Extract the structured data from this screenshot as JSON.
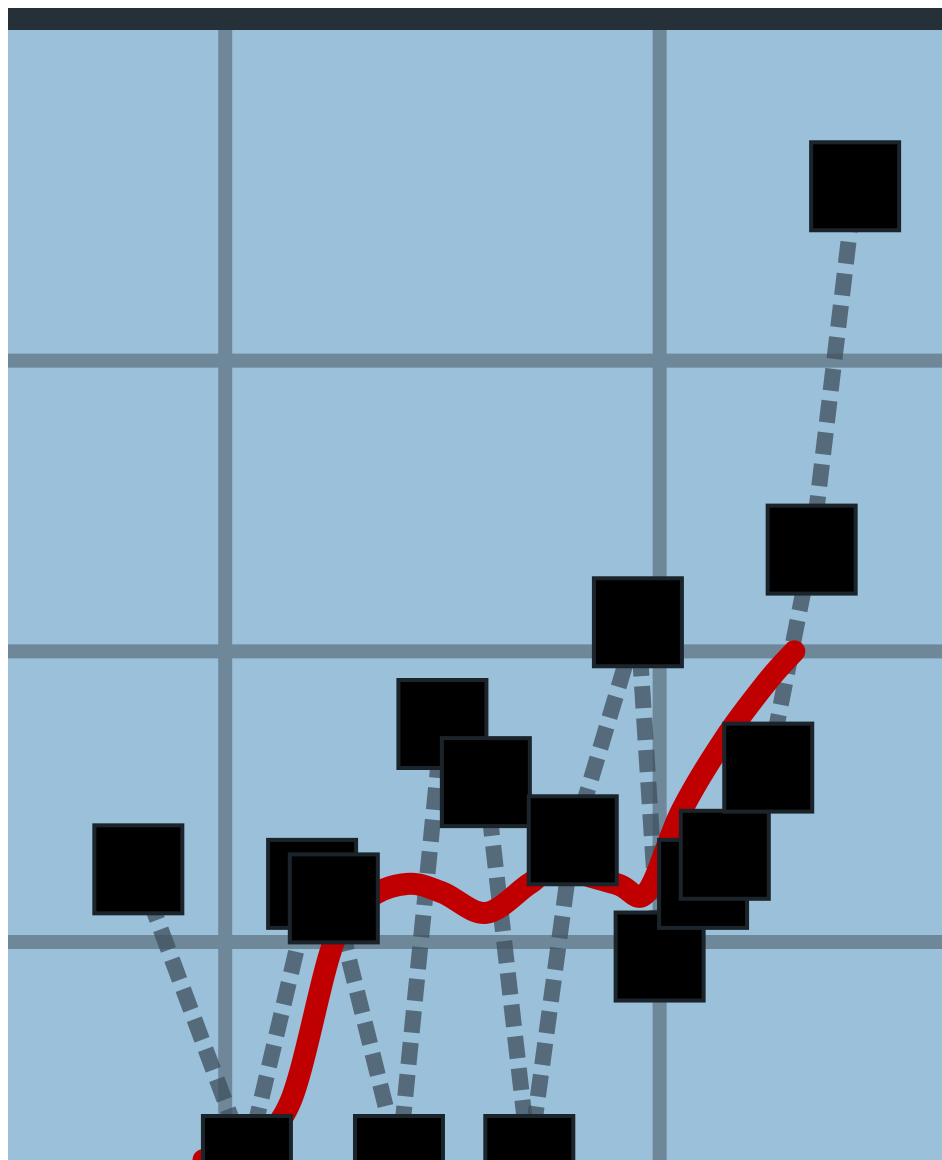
{
  "colors": {
    "plot_background": "#9bc0da",
    "gridline": "#6e8799",
    "frame_top": "#253038",
    "marker": "#000000",
    "connector": "#3d4f5c",
    "trend_line": "#c00000"
  },
  "chart_data": {
    "type": "line",
    "title": "",
    "xlabel": "",
    "ylabel": "",
    "grid": true,
    "legend": "none",
    "xlim": [
      0,
      21.5
    ],
    "ylim": [
      0,
      3.75
    ],
    "x_gridlines": [
      5,
      15
    ],
    "y_gridlines": [
      0.75,
      1.75,
      2.75
    ],
    "series": [
      {
        "marker": "square",
        "style": "markers-with-connectors",
        "x": [
          3,
          5.5,
          7,
          7.5,
          9,
          10,
          11,
          12,
          13,
          14.5,
          15,
          16,
          16.5,
          17.5,
          18.5,
          19.5
        ],
        "y": [
          1.0,
          0.0,
          0.95,
          0.9,
          0.0,
          1.5,
          1.3,
          0.0,
          1.1,
          1.85,
          0.7,
          0.95,
          1.05,
          1.35,
          2.1,
          3.35
        ],
        "connections": [
          [
            0,
            1
          ],
          [
            1,
            2
          ],
          [
            2,
            3
          ],
          [
            3,
            4
          ],
          [
            4,
            5
          ],
          [
            5,
            6
          ],
          [
            6,
            7
          ],
          [
            7,
            8
          ],
          [
            8,
            9
          ],
          [
            9,
            10
          ],
          [
            10,
            11
          ],
          [
            11,
            12
          ],
          [
            12,
            13
          ],
          [
            13,
            14
          ],
          [
            14,
            15
          ]
        ]
      },
      {
        "style": "smoothed-line",
        "x": [
          4.5,
          5.5,
          6.5,
          7.5,
          8.3,
          9.2,
          10,
          11,
          12,
          12.6,
          14,
          14.7,
          15.5,
          16.5,
          17.5,
          18.1
        ],
        "y": [
          0.0,
          0.05,
          0.2,
          0.75,
          0.9,
          0.95,
          0.92,
          0.85,
          0.95,
          1.0,
          0.95,
          0.92,
          1.2,
          1.45,
          1.65,
          1.75
        ]
      }
    ]
  }
}
